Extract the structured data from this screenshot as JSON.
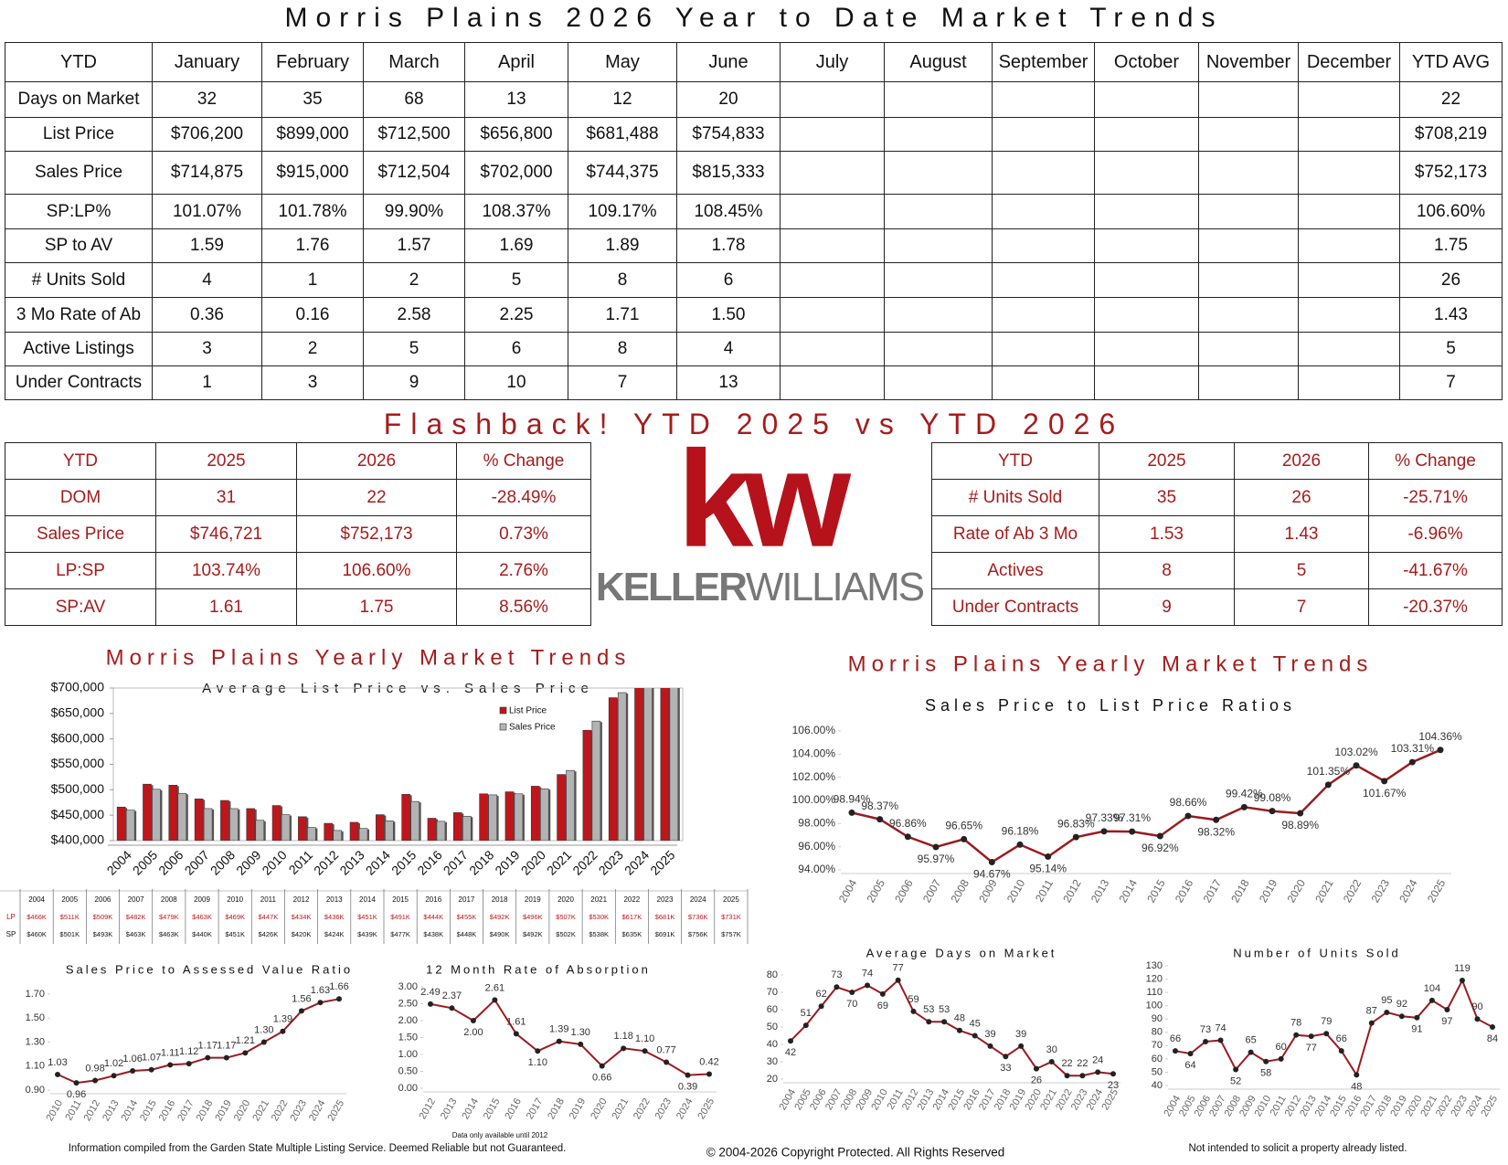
{
  "title": "Morris Plains 2026 Year to Date Market Trends",
  "ytd_table": {
    "header": [
      "YTD",
      "January",
      "February",
      "March",
      "April",
      "May",
      "June",
      "July",
      "August",
      "September",
      "October",
      "November",
      "December",
      "YTD AVG"
    ],
    "rows": [
      {
        "label": "Days on Market",
        "values": [
          "32",
          "35",
          "68",
          "13",
          "12",
          "20"
        ],
        "avg": "22"
      },
      {
        "label": "List Price",
        "values": [
          "$706,200",
          "$899,000",
          "$712,500",
          "$656,800",
          "$681,488",
          "$754,833"
        ],
        "avg": "$708,219"
      },
      {
        "label": "Sales Price",
        "values": [
          "$714,875",
          "$915,000",
          "$712,504",
          "$702,000",
          "$744,375",
          "$815,333"
        ],
        "avg": "$752,173"
      },
      {
        "label": "SP:LP%",
        "values": [
          "101.07%",
          "101.78%",
          "99.90%",
          "108.37%",
          "109.17%",
          "108.45%"
        ],
        "avg": "106.60%"
      },
      {
        "label": "SP to AV",
        "values": [
          "1.59",
          "1.76",
          "1.57",
          "1.69",
          "1.89",
          "1.78"
        ],
        "avg": "1.75"
      },
      {
        "label": "# Units Sold",
        "values": [
          "4",
          "1",
          "2",
          "5",
          "8",
          "6"
        ],
        "avg": "26"
      },
      {
        "label": "3 Mo Rate of Ab",
        "values": [
          "0.36",
          "0.16",
          "2.58",
          "2.25",
          "1.71",
          "1.50"
        ],
        "avg": "1.43"
      },
      {
        "label": "Active Listings",
        "values": [
          "3",
          "2",
          "5",
          "6",
          "8",
          "4"
        ],
        "avg": "5"
      },
      {
        "label": "Under Contracts",
        "values": [
          "1",
          "3",
          "9",
          "10",
          "7",
          "13"
        ],
        "avg": "7"
      }
    ]
  },
  "flashback": {
    "title": "Flashback!  YTD 2025 vs YTD 2026",
    "left": {
      "header": [
        "YTD",
        "2025",
        "2026",
        "% Change"
      ],
      "rows": [
        [
          "DOM",
          "31",
          "22",
          "-28.49%"
        ],
        [
          "Sales Price",
          "$746,721",
          "$752,173",
          "0.73%"
        ],
        [
          "LP:SP",
          "103.74%",
          "106.60%",
          "2.76%"
        ],
        [
          "SP:AV",
          "1.61",
          "1.75",
          "8.56%"
        ]
      ]
    },
    "right": {
      "header": [
        "YTD",
        "2025",
        "2026",
        "% Change"
      ],
      "rows": [
        [
          "# Units Sold",
          "35",
          "26",
          "-25.71%"
        ],
        [
          "Rate of Ab 3 Mo",
          "1.53",
          "1.43",
          "-6.96%"
        ],
        [
          "Actives",
          "8",
          "5",
          "-41.67%"
        ],
        [
          "Under Contracts",
          "9",
          "7",
          "-20.37%"
        ]
      ]
    }
  },
  "logo": {
    "mark": "kw",
    "name": [
      "KELLER",
      "WILLIAMS"
    ]
  },
  "chart_data": [
    {
      "type": "bar",
      "title": "Morris Plains Yearly Market Trends",
      "subtitle": "Average List Price vs. Sales Price",
      "categories": [
        "2004",
        "2005",
        "2006",
        "2007",
        "2008",
        "2009",
        "2010",
        "2011",
        "2012",
        "2013",
        "2014",
        "2015",
        "2016",
        "2017",
        "2018",
        "2019",
        "2020",
        "2021",
        "2022",
        "2023",
        "2024",
        "2025"
      ],
      "series": [
        {
          "name": "List Price",
          "short": "LP",
          "color": "#c0161b",
          "values": [
            466000,
            511000,
            509000,
            482000,
            479000,
            463000,
            469000,
            447000,
            434000,
            436000,
            451000,
            491000,
            444000,
            455000,
            492000,
            496000,
            507000,
            530000,
            617000,
            681000,
            736000,
            731000
          ],
          "value_labels": [
            "$466K",
            "$511K",
            "$509K",
            "$482K",
            "$479K",
            "$463K",
            "$469K",
            "$447K",
            "$434K",
            "$436K",
            "$451K",
            "$491K",
            "$444K",
            "$455K",
            "$492K",
            "$496K",
            "$507K",
            "$530K",
            "$617K",
            "$681K",
            "$736K",
            "$731K"
          ]
        },
        {
          "name": "Sales Price",
          "short": "SP",
          "color": "#b3b3b3",
          "values": [
            460000,
            501000,
            493000,
            463000,
            463000,
            440000,
            451000,
            426000,
            420000,
            424000,
            439000,
            477000,
            438000,
            448000,
            490000,
            492000,
            502000,
            538000,
            635000,
            691000,
            756000,
            757000
          ],
          "value_labels": [
            "$460K",
            "$501K",
            "$493K",
            "$463K",
            "$463K",
            "$440K",
            "$451K",
            "$426K",
            "$420K",
            "$424K",
            "$439K",
            "$477K",
            "$438K",
            "$448K",
            "$490K",
            "$492K",
            "$502K",
            "$538K",
            "$635K",
            "$691K",
            "$756K",
            "$757K"
          ]
        }
      ],
      "ylim": [
        400000,
        700000
      ],
      "yticks": [
        {
          "value": 400000,
          "label": "$400,000"
        },
        {
          "value": 450000,
          "label": "$450,000"
        },
        {
          "value": 500000,
          "label": "$500,000"
        },
        {
          "value": 550000,
          "label": "$550,000"
        },
        {
          "value": 600000,
          "label": "$600,000"
        },
        {
          "value": 650000,
          "label": "$650,000"
        },
        {
          "value": 700000,
          "label": "$700,000"
        }
      ],
      "legend": "top-right"
    },
    {
      "type": "line",
      "title": "Morris Plains Yearly Market Trends",
      "subtitle": "Sales Price to List Price Ratios",
      "color": "#9b1b1f",
      "categories": [
        "2004",
        "2005",
        "2006",
        "2007",
        "2008",
        "2009",
        "2010",
        "2011",
        "2012",
        "2013",
        "2014",
        "2015",
        "2016",
        "2017",
        "2018",
        "2019",
        "2020",
        "2021",
        "2022",
        "2023",
        "2024",
        "2025"
      ],
      "values": [
        98.94,
        98.37,
        96.86,
        95.97,
        96.65,
        94.67,
        96.18,
        95.14,
        96.83,
        97.33,
        97.31,
        96.92,
        98.66,
        98.32,
        99.42,
        99.08,
        98.89,
        101.35,
        103.02,
        101.67,
        103.31,
        104.36
      ],
      "value_labels": [
        "98.94%",
        "98.37%",
        "96.86%",
        "95.97%",
        "96.65%",
        "94.67%",
        "96.18%",
        "95.14%",
        "96.83%",
        "97.33%",
        "97.31%",
        "96.92%",
        "98.66%",
        "98.32%",
        "99.42%",
        "99.08%",
        "98.89%",
        "101.35%",
        "103.02%",
        "101.67%",
        "103.31%",
        "104.36%"
      ],
      "ylim": [
        94,
        106
      ],
      "yticks": [
        {
          "value": 94,
          "label": "94.00%"
        },
        {
          "value": 96,
          "label": "96.00%"
        },
        {
          "value": 98,
          "label": "98.00%"
        },
        {
          "value": 100,
          "label": "100.00%"
        },
        {
          "value": 102,
          "label": "102.00%"
        },
        {
          "value": 104,
          "label": "104.00%"
        },
        {
          "value": 106,
          "label": "106.00%"
        }
      ]
    },
    {
      "type": "line",
      "title": "Sales Price to Assessed Value Ratio",
      "color": "#9b1b1f",
      "categories": [
        "2010",
        "2011",
        "2012",
        "2013",
        "2014",
        "2015",
        "2016",
        "2017",
        "2018",
        "2019",
        "2020",
        "2021",
        "2022",
        "2023",
        "2024",
        "2025"
      ],
      "values": [
        1.03,
        0.96,
        0.98,
        1.02,
        1.06,
        1.07,
        1.11,
        1.12,
        1.17,
        1.17,
        1.21,
        1.3,
        1.39,
        1.56,
        1.63,
        1.66
      ],
      "value_labels": [
        "1.03",
        "0.96",
        "0.98",
        "1.02",
        "1.06",
        "1.07",
        "1.11",
        "1.12",
        "1.17",
        "1.17",
        "1.21",
        "1.30",
        "1.39",
        "1.56",
        "1.63",
        "1.66"
      ],
      "ylim": [
        0.9,
        1.7
      ],
      "yticks": [
        {
          "value": 0.9,
          "label": "0.90"
        },
        {
          "value": 1.1,
          "label": "1.10"
        },
        {
          "value": 1.3,
          "label": "1.30"
        },
        {
          "value": 1.5,
          "label": "1.50"
        },
        {
          "value": 1.7,
          "label": "1.70"
        }
      ]
    },
    {
      "type": "line",
      "title": "12 Month Rate of Absorption",
      "note": "Data only available until 2012",
      "color": "#9b1b1f",
      "categories": [
        "2012",
        "2013",
        "2014",
        "2015",
        "2016",
        "2017",
        "2018",
        "2019",
        "2020",
        "2021",
        "2022",
        "2023",
        "2024",
        "2025"
      ],
      "values": [
        2.49,
        2.37,
        2.0,
        2.61,
        1.61,
        1.1,
        1.39,
        1.3,
        0.66,
        1.18,
        1.1,
        0.77,
        0.39,
        0.42
      ],
      "value_labels": [
        "2.49",
        "2.37",
        "2.00",
        "2.61",
        "1.61",
        "1.10",
        "1.39",
        "1.30",
        "0.66",
        "1.18",
        "1.10",
        "0.77",
        "0.39",
        "0.42"
      ],
      "ylim": [
        0,
        3
      ],
      "yticks": [
        {
          "value": 0,
          "label": "0.00"
        },
        {
          "value": 0.5,
          "label": "0.50"
        },
        {
          "value": 1,
          "label": "1.00"
        },
        {
          "value": 1.5,
          "label": "1.50"
        },
        {
          "value": 2,
          "label": "2.00"
        },
        {
          "value": 2.5,
          "label": "2.50"
        },
        {
          "value": 3,
          "label": "3.00"
        }
      ]
    },
    {
      "type": "line",
      "title": "Average Days on Market",
      "color": "#9b1b1f",
      "categories": [
        "2004",
        "2005",
        "2006",
        "2007",
        "2008",
        "2009",
        "2010",
        "2011",
        "2012",
        "2013",
        "2014",
        "2015",
        "2016",
        "2017",
        "2018",
        "2019",
        "2020",
        "2021",
        "2022",
        "2023",
        "2024",
        "2025"
      ],
      "values": [
        42,
        51,
        62,
        73,
        70,
        74,
        69,
        77,
        59,
        53,
        53,
        48,
        45,
        39,
        33,
        39,
        26,
        30,
        22,
        22,
        24,
        23
      ],
      "ylim": [
        20,
        80
      ],
      "yticks": [
        20,
        30,
        40,
        50,
        60,
        70,
        80
      ]
    },
    {
      "type": "line",
      "title": "Number of Units Sold",
      "color": "#9b1b1f",
      "categories": [
        "2004",
        "2005",
        "2006",
        "2007",
        "2008",
        "2009",
        "2010",
        "2011",
        "2012",
        "2013",
        "2014",
        "2015",
        "2016",
        "2017",
        "2018",
        "2019",
        "2020",
        "2021",
        "2022",
        "2023",
        "2024",
        "2025"
      ],
      "values": [
        66,
        64,
        73,
        74,
        52,
        65,
        58,
        60,
        78,
        77,
        79,
        66,
        48,
        87,
        95,
        92,
        91,
        104,
        97,
        119,
        90,
        84
      ],
      "ylim": [
        40,
        130
      ],
      "yticks": [
        40,
        50,
        60,
        70,
        80,
        90,
        100,
        110,
        120,
        130
      ]
    }
  ],
  "footer": {
    "left": "Information compiled from the Garden State Multiple Listing Service.  Deemed Reliable but not Guaranteed.",
    "center": "© 2004-2026 Copyright Protected.  All Rights Reserved",
    "right": "Not intended to solicit a property already listed."
  }
}
